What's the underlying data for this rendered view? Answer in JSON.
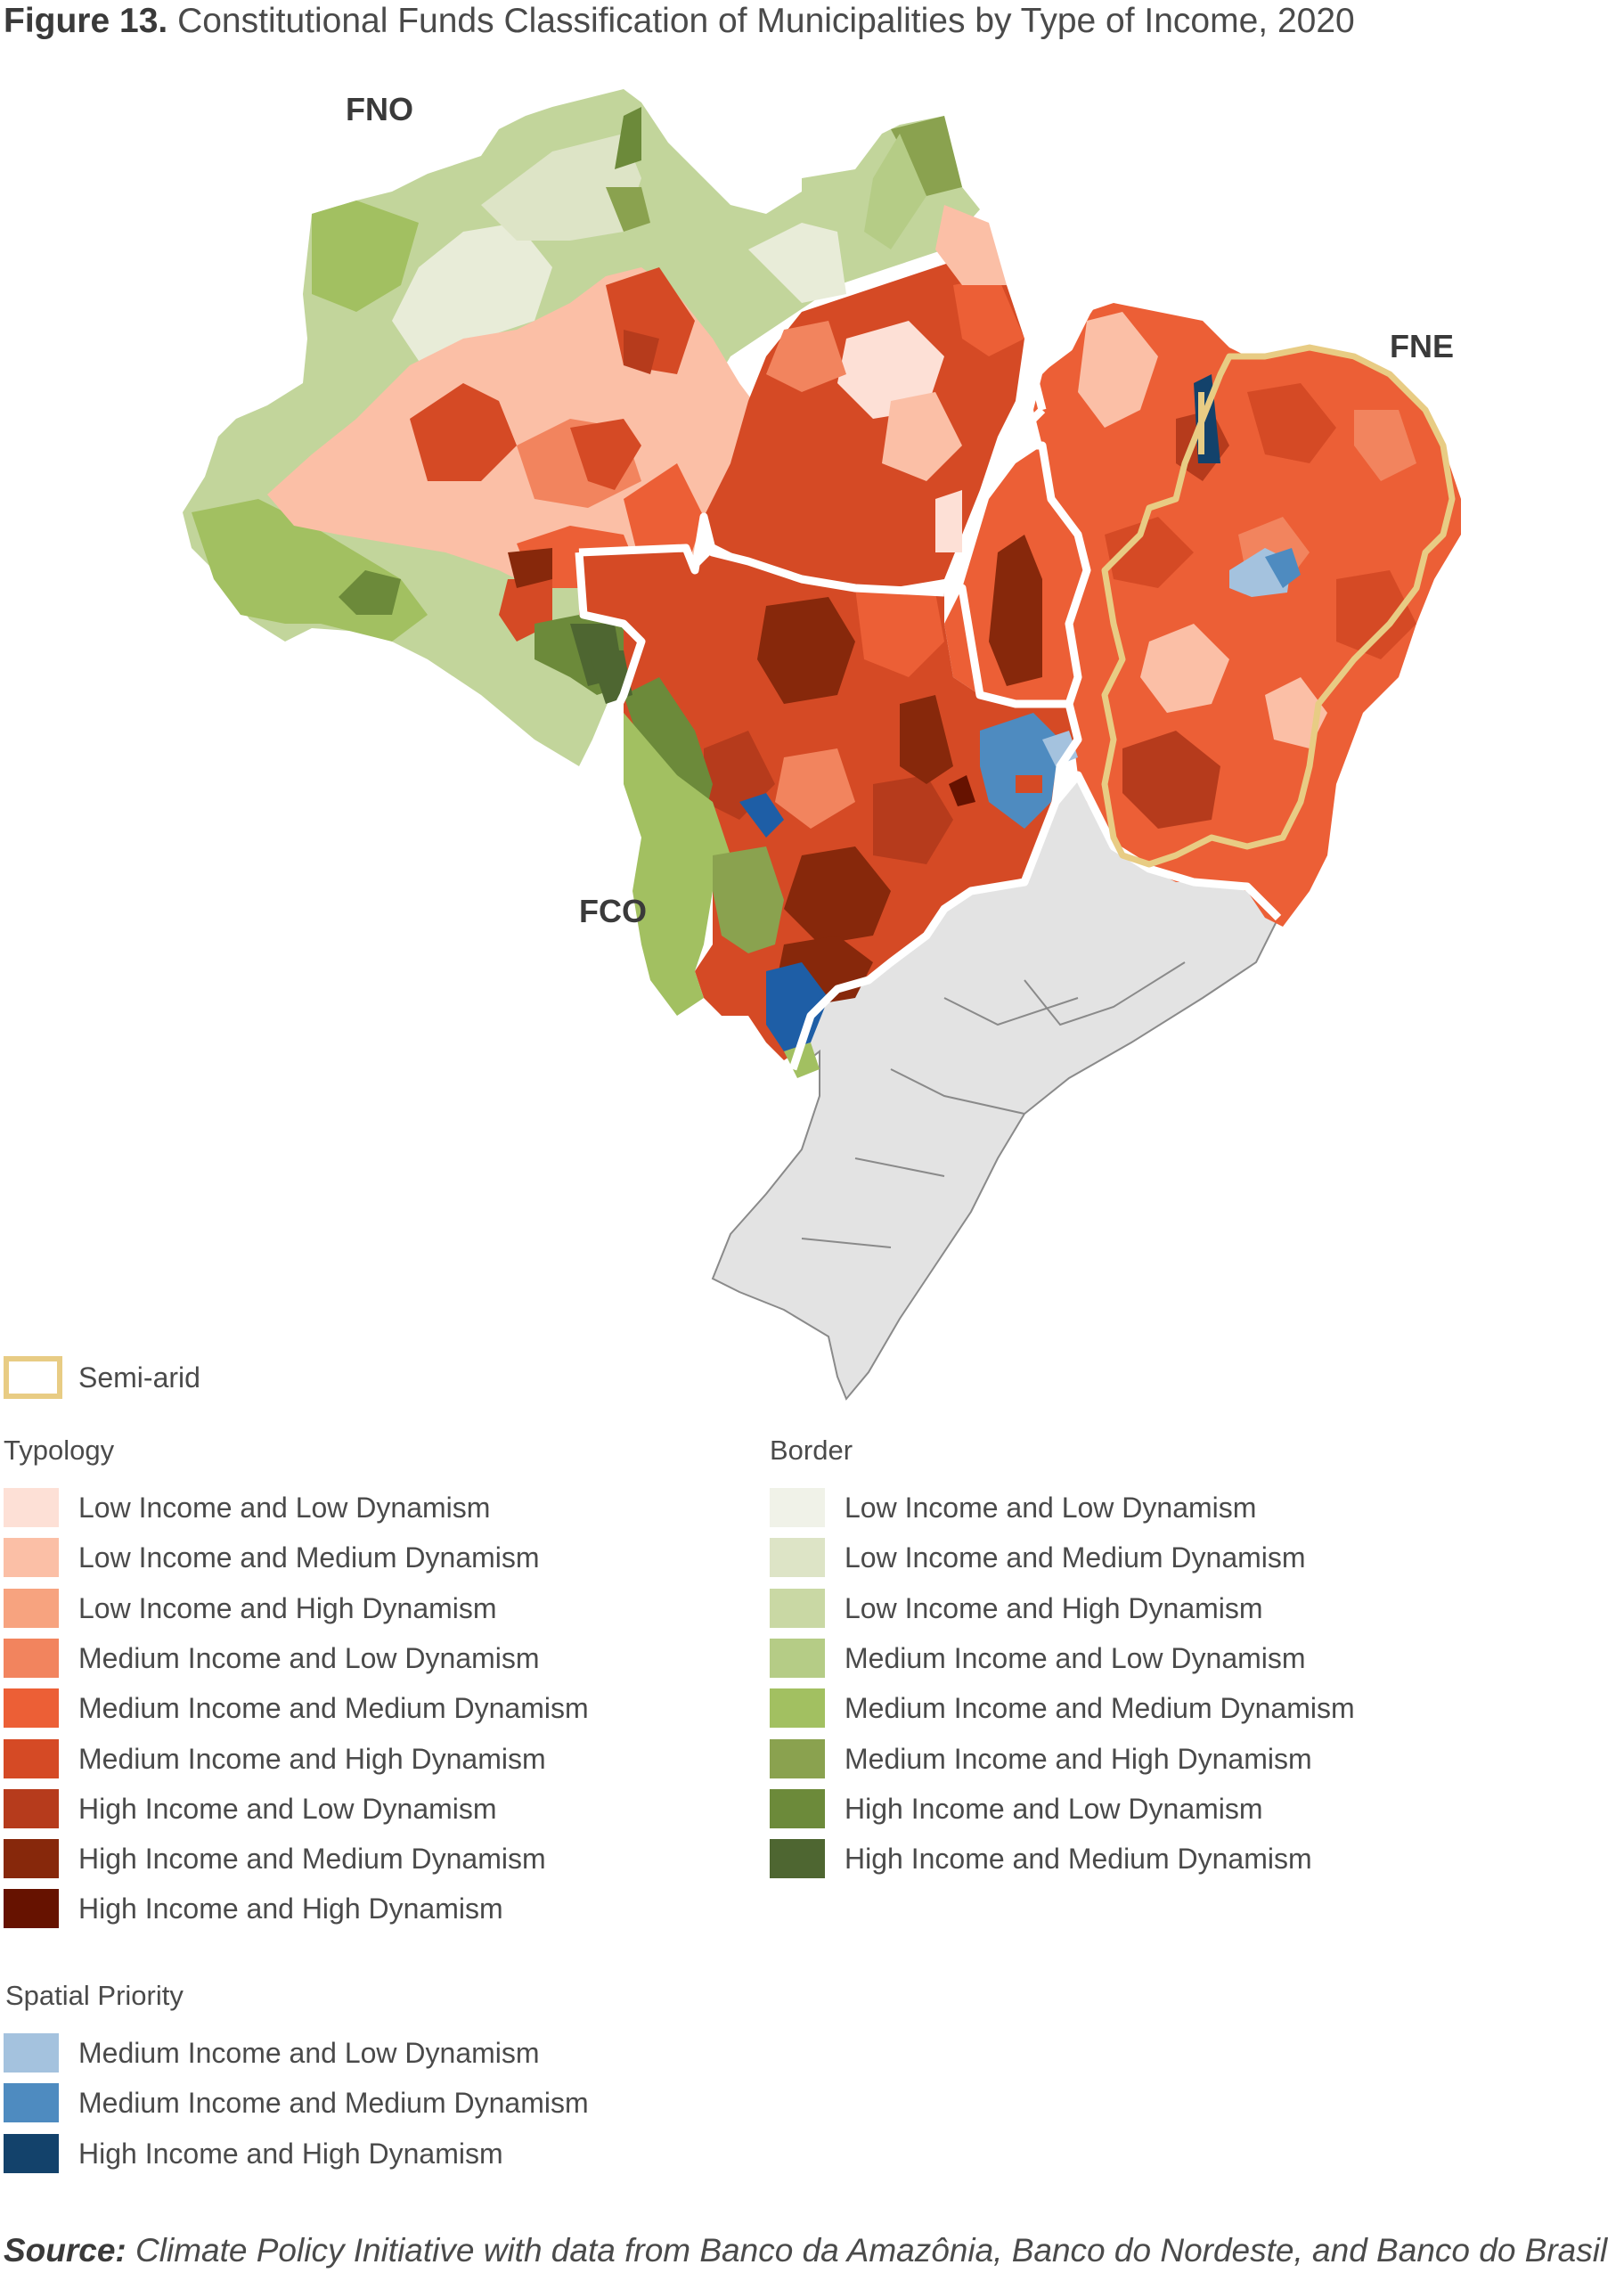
{
  "figure": {
    "label": "Figure 13.",
    "title": "Constitutional Funds Classification of Municipalities by Type of Income, 2020"
  },
  "map": {
    "region_labels": [
      "FNO",
      "FNE",
      "FCO"
    ],
    "colors": {
      "south_southeast": "#e3e3e3",
      "fund_border": "#ffffff",
      "semi_arid": "#e8cc84"
    }
  },
  "legend": {
    "semi_arid": {
      "label": "Semi-arid",
      "color": "#e8cc84"
    },
    "typology": {
      "title": "Typology",
      "items": [
        {
          "label": "Low Income and Low Dynamism",
          "color": "#fde0d6"
        },
        {
          "label": "Low Income and Medium Dynamism",
          "color": "#fbbfa6"
        },
        {
          "label": "Low Income and High Dynamism",
          "color": "#f7a37f"
        },
        {
          "label": "Medium Income and Low Dynamism",
          "color": "#f2845e"
        },
        {
          "label": "Medium Income and Medium Dynamism",
          "color": "#ec5f36"
        },
        {
          "label": "Medium Income and High Dynamism",
          "color": "#d54a25"
        },
        {
          "label": "High Income and Low Dynamism",
          "color": "#b63b1c"
        },
        {
          "label": "High Income and Medium Dynamism",
          "color": "#87280b"
        },
        {
          "label": "High Income and High Dynamism",
          "color": "#661200"
        }
      ]
    },
    "border": {
      "title": "Border",
      "items": [
        {
          "label": "Low Income and Low Dynamism",
          "color": "#f0f2e8"
        },
        {
          "label": "Low Income and Medium Dynamism",
          "color": "#dde4c6"
        },
        {
          "label": "Low Income and High Dynamism",
          "color": "#c9d8a4"
        },
        {
          "label": "Medium Income and Low Dynamism",
          "color": "#b5cc86"
        },
        {
          "label": "Medium Income and Medium Dynamism",
          "color": "#a2c061"
        },
        {
          "label": "Medium Income and High Dynamism",
          "color": "#8aa24f"
        },
        {
          "label": "High Income and Low Dynamism",
          "color": "#6c8a3a"
        },
        {
          "label": "High Income and Medium Dynamism",
          "color": "#4e6631"
        }
      ]
    },
    "spatial_priority": {
      "title": "Spatial Priority",
      "items": [
        {
          "label": "Medium Income and Low Dynamism",
          "color": "#a4c2de"
        },
        {
          "label": "Medium Income and Medium Dynamism",
          "color": "#4e8bc0"
        },
        {
          "label": "High Income and High Dynamism",
          "color": "#13426b"
        }
      ]
    }
  },
  "source": {
    "prefix": "Source:",
    "text": "Climate Policy Initiative with data from Banco da Amazônia, Banco do Nordeste, and Banco do Brasil"
  }
}
